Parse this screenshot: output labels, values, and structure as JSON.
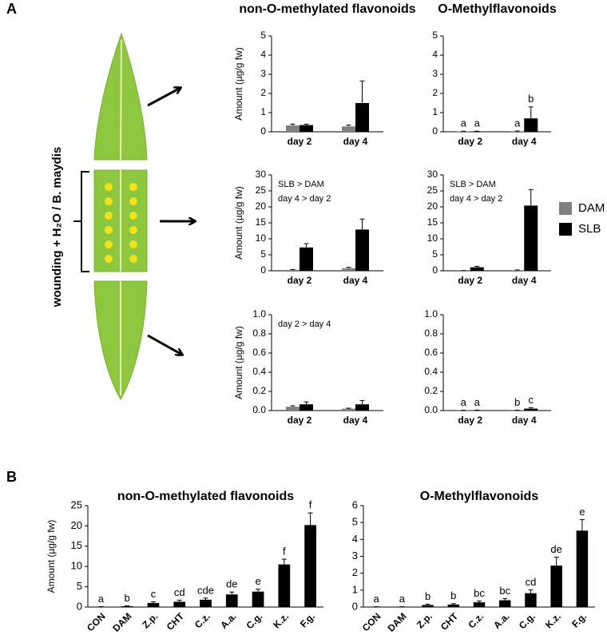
{
  "panel_labels": [
    "A",
    "B"
  ],
  "treatment_label": "wounding + H₂O / B. maydis",
  "chart_data": [
    {
      "type": "bar",
      "title": "non-O-methylated flavonoids",
      "ylabel": "Amount (µg/g fw)",
      "categories": [
        "day 2",
        "day 4"
      ],
      "ylim": [
        0,
        5
      ],
      "yticks": [
        0,
        1,
        2,
        3,
        4,
        5
      ],
      "series": [
        {
          "name": "DAM",
          "color": "#808080",
          "values": [
            0.33,
            0.28
          ],
          "errors": [
            0.07,
            0.07
          ]
        },
        {
          "name": "SLB",
          "color": "#000000",
          "values": [
            0.35,
            1.5
          ],
          "errors": [
            0.05,
            1.15
          ]
        }
      ]
    },
    {
      "type": "bar",
      "title": "O-Methylflavonoids",
      "categories": [
        "day 2",
        "day 4"
      ],
      "ylim": [
        0,
        5
      ],
      "yticks": [
        0,
        1,
        2,
        3,
        4,
        5
      ],
      "series": [
        {
          "name": "DAM",
          "color": "#808080",
          "values": [
            0.02,
            0.03
          ],
          "errors": [
            0.01,
            0.01
          ],
          "letters": [
            "a",
            "a"
          ]
        },
        {
          "name": "SLB",
          "color": "#000000",
          "values": [
            0.02,
            0.7
          ],
          "errors": [
            0.01,
            0.6
          ],
          "letters": [
            "a",
            "b"
          ]
        }
      ]
    },
    {
      "type": "bar",
      "ylabel": "Amount (µg/g fw)",
      "notes": [
        "SLB > DAM",
        "day 4 > day 2"
      ],
      "categories": [
        "day 2",
        "day 4"
      ],
      "ylim": [
        0,
        30
      ],
      "yticks": [
        0,
        5,
        10,
        15,
        20,
        25,
        30
      ],
      "series": [
        {
          "name": "DAM",
          "color": "#808080",
          "values": [
            0.3,
            0.8
          ],
          "errors": [
            0.1,
            0.3
          ]
        },
        {
          "name": "SLB",
          "color": "#000000",
          "values": [
            7.3,
            12.9
          ],
          "errors": [
            1.2,
            3.3
          ]
        }
      ]
    },
    {
      "type": "bar",
      "notes": [
        "SLB > DAM",
        "day 4 > day 2"
      ],
      "categories": [
        "day 2",
        "day 4"
      ],
      "ylim": [
        0,
        30
      ],
      "yticks": [
        0,
        5,
        10,
        15,
        20,
        25,
        30
      ],
      "series": [
        {
          "name": "DAM",
          "color": "#808080",
          "values": [
            0.05,
            0.2
          ],
          "errors": [
            0.02,
            0.05
          ]
        },
        {
          "name": "SLB",
          "color": "#000000",
          "values": [
            1.1,
            20.4
          ],
          "errors": [
            0.3,
            5.0
          ]
        }
      ]
    },
    {
      "type": "bar",
      "ylabel": "Amount (µg/g fw)",
      "notes": [
        "day 2 > day 4"
      ],
      "categories": [
        "day 2",
        "day 4"
      ],
      "ylim": [
        0,
        1
      ],
      "yticks": [
        {
          "value": 0,
          "label": "0.0"
        },
        {
          "value": 0.2,
          "label": "0.2"
        },
        {
          "value": 0.4,
          "label": "0.4"
        },
        {
          "value": 0.6,
          "label": "0.6"
        },
        {
          "value": 0.8,
          "label": "0.8"
        },
        {
          "value": 1,
          "label": "1.0"
        }
      ],
      "series": [
        {
          "name": "DAM",
          "color": "#808080",
          "values": [
            0.04,
            0.02
          ],
          "errors": [
            0.01,
            0.005
          ]
        },
        {
          "name": "SLB",
          "color": "#000000",
          "values": [
            0.065,
            0.065
          ],
          "errors": [
            0.025,
            0.04
          ]
        }
      ]
    },
    {
      "type": "bar",
      "categories": [
        "day 2",
        "day 4"
      ],
      "ylim": [
        0,
        1
      ],
      "yticks": [
        {
          "value": 0,
          "label": "0.0"
        },
        {
          "value": 0.2,
          "label": "0.2"
        },
        {
          "value": 0.4,
          "label": "0.4"
        },
        {
          "value": 0.6,
          "label": "0.6"
        },
        {
          "value": 0.8,
          "label": "0.8"
        },
        {
          "value": 1,
          "label": "1.0"
        }
      ],
      "series": [
        {
          "name": "DAM",
          "color": "#808080",
          "values": [
            0.002,
            0.002
          ],
          "errors": [
            0.002,
            0.002
          ],
          "letters": [
            "a",
            "b"
          ]
        },
        {
          "name": "SLB",
          "color": "#000000",
          "values": [
            0.003,
            0.02
          ],
          "errors": [
            0.002,
            0.01
          ],
          "letters": [
            "a",
            "c"
          ]
        }
      ]
    },
    {
      "type": "bar",
      "title": "non-O-methylated flavonoids",
      "ylabel": "Amount (µg/g fw)",
      "categories": [
        "CON",
        "DAM",
        "Z.p.",
        "CHT",
        "C.z.",
        "A.a.",
        "C.g.",
        "K.z.",
        "F.g."
      ],
      "ylim": [
        0,
        25
      ],
      "yticks": [
        0,
        5,
        10,
        15,
        20,
        25
      ],
      "color": "#000000",
      "values": [
        0.05,
        0.2,
        1.0,
        1.3,
        1.8,
        3.1,
        3.8,
        10.5,
        20.2
      ],
      "errors": [
        0.05,
        0.1,
        0.3,
        0.4,
        0.4,
        0.6,
        0.6,
        1.3,
        3.0
      ],
      "letters": [
        "a",
        "b",
        "c",
        "cd",
        "cde",
        "de",
        "e",
        "f",
        "f"
      ]
    },
    {
      "type": "bar",
      "title": "O-Methylflavonoids",
      "categories": [
        "CON",
        "DAM",
        "Z.p.",
        "CHT",
        "C.z.",
        "A.a.",
        "C.g.",
        "K.z.",
        "F.g."
      ],
      "ylim": [
        0,
        6
      ],
      "yticks": [
        0,
        1,
        2,
        3,
        4,
        5,
        6
      ],
      "color": "#000000",
      "values": [
        0.01,
        0.01,
        0.12,
        0.15,
        0.28,
        0.4,
        0.82,
        2.45,
        4.52
      ],
      "errors": [
        0.01,
        0.01,
        0.05,
        0.05,
        0.08,
        0.1,
        0.2,
        0.5,
        0.65
      ],
      "letters": [
        "a",
        "a",
        "b",
        "b",
        "bc",
        "bc",
        "cd",
        "de",
        "e"
      ]
    }
  ]
}
